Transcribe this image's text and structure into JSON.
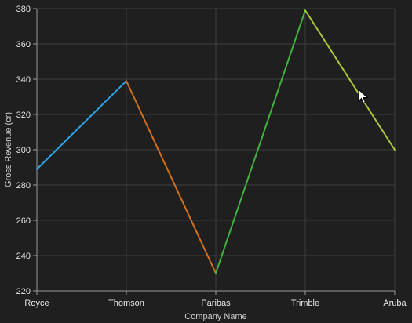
{
  "chart_data": {
    "type": "line",
    "categories": [
      "Royce",
      "Thomson",
      "Paribas",
      "Trimble",
      "Aruba"
    ],
    "values": [
      289,
      339,
      230,
      379,
      300
    ],
    "segment_colors": [
      "#29a3e6",
      "#d2701a",
      "#3fb23f",
      "#a8c83a"
    ],
    "xlabel": "Company Name",
    "ylabel": "Gross Revenue (cr)",
    "ylim": [
      220,
      380
    ],
    "y_ticks": [
      220,
      240,
      260,
      280,
      300,
      320,
      340,
      360,
      380
    ],
    "grid": true
  },
  "theme": {
    "background": "#1f1f1f",
    "grid_color": "#3c3c3c",
    "axis_color": "#9a9a9a"
  },
  "cursor_icon": "mouse-pointer-icon"
}
